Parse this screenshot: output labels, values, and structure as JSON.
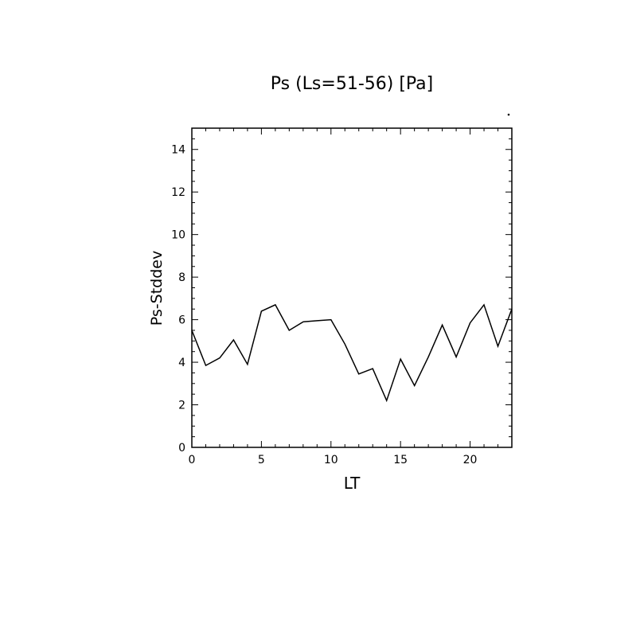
{
  "chart_data": {
    "type": "line",
    "title": "Ps (Ls=51-56) [Pa]",
    "xlabel": "LT",
    "ylabel": "Ps-Stddev",
    "xlim": [
      0,
      23
    ],
    "ylim": [
      0,
      15
    ],
    "xticks": [
      0,
      5,
      10,
      15,
      20
    ],
    "yticks": [
      0,
      2,
      4,
      6,
      8,
      10,
      12,
      14
    ],
    "grid": false,
    "series": [
      {
        "x": [
          0,
          1,
          2,
          3,
          4,
          5,
          6,
          7,
          8,
          9,
          10,
          11,
          12,
          13,
          14,
          15,
          16,
          17,
          18,
          19,
          20,
          21,
          22,
          23
        ],
        "values": [
          5.5,
          3.85,
          4.2,
          5.05,
          3.9,
          6.4,
          6.7,
          5.5,
          5.9,
          5.95,
          6.0,
          4.85,
          3.45,
          3.7,
          2.2,
          4.15,
          2.9,
          4.25,
          5.75,
          4.25,
          5.85,
          6.7,
          4.75,
          6.5
        ]
      }
    ],
    "colors": {
      "line": "#000000",
      "axes": "#000000"
    }
  }
}
